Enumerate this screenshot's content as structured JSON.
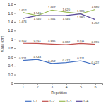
{
  "chart_data": {
    "type": "line",
    "x_label": "Repetition",
    "y_label": "Kaas (cm)",
    "categories": [
      "1",
      "2",
      "3",
      "4",
      "5",
      "6"
    ],
    "ylim": [
      0,
      1.8
    ],
    "yticks": [
      0,
      0.2,
      0.4,
      0.6,
      0.8,
      1,
      1.2,
      1.4,
      1.6,
      1.8
    ],
    "grid": false,
    "legend": "bottom",
    "data_labels": true,
    "series": [
      {
        "name": "G1",
        "color": "#4472c4",
        "values": [
          0.521,
          0.544,
          0.452,
          0.472,
          0.511,
          0.422
        ],
        "value_labels": [
          "0.521",
          "0.544",
          "0.452",
          "0.472",
          "0.511",
          "0.422"
        ]
      },
      {
        "name": "G2",
        "color": "#c0504d",
        "values": [
          0.912,
          0.911,
          0.895,
          0.882,
          0.911,
          0.89
        ],
        "value_labels": [
          "0.912",
          "0.911",
          "0.895",
          "0.882",
          "0.911",
          "0.890"
        ]
      },
      {
        "name": "G3",
        "color": "#9bbb59",
        "values": [
          1.612,
          1.54,
          1.667,
          1.62,
          1.585,
          1.68
        ],
        "value_labels": [
          "1.612",
          "1.540",
          "1.667",
          "1.620",
          "1.585",
          "1.680"
        ]
      },
      {
        "name": "G4",
        "color": "#5b4a9b",
        "values": [
          1.476,
          1.54,
          1.541,
          1.546,
          1.58,
          1.452
        ],
        "value_labels": [
          "1.476",
          "1.540",
          "1.541",
          "1.546",
          "1.580",
          "1.452"
        ]
      }
    ]
  }
}
